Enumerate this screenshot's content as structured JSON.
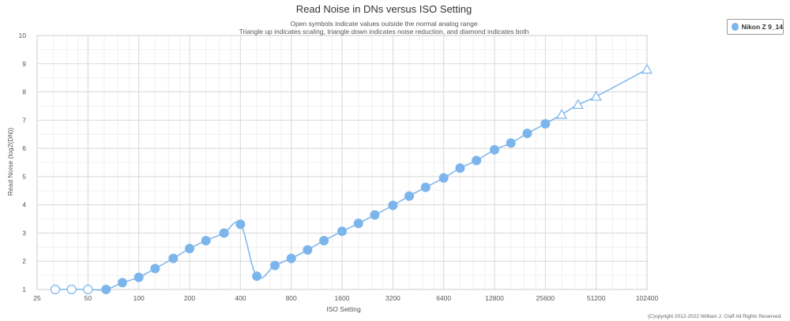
{
  "chart_data": {
    "type": "line",
    "title": "Read Noise in DNs versus ISO Setting",
    "subtitle_lines": [
      "Open symbols indicate values outside the normal analog range",
      "Triangle up indicates scaling, triangle down indicates noise reduction, and diamond indicates both"
    ],
    "xlabel": "ISO Setting",
    "ylabel": "Read Noise (log2(DN))",
    "x_scale": "log2",
    "xlim": [
      25,
      102400
    ],
    "ylim": [
      1,
      10
    ],
    "x_ticks": [
      25,
      50,
      100,
      200,
      400,
      800,
      1600,
      3200,
      6400,
      12800,
      25600,
      51200,
      102400
    ],
    "y_ticks": [
      1,
      2,
      3,
      4,
      5,
      6,
      7,
      8,
      9,
      10
    ],
    "grid": true,
    "legend_position": "top-right",
    "series": [
      {
        "name": "Nikon Z 9_14",
        "color": "#7cb5ec",
        "points": [
          {
            "x": 32,
            "y": 1.0,
            "marker": "open-circle"
          },
          {
            "x": 40,
            "y": 1.0,
            "marker": "open-circle"
          },
          {
            "x": 50,
            "y": 1.0,
            "marker": "open-circle"
          },
          {
            "x": 64,
            "y": 1.0,
            "marker": "circle"
          },
          {
            "x": 80,
            "y": 1.24,
            "marker": "circle"
          },
          {
            "x": 100,
            "y": 1.43,
            "marker": "circle"
          },
          {
            "x": 125,
            "y": 1.74,
            "marker": "circle"
          },
          {
            "x": 160,
            "y": 2.1,
            "marker": "circle"
          },
          {
            "x": 200,
            "y": 2.45,
            "marker": "circle"
          },
          {
            "x": 250,
            "y": 2.73,
            "marker": "circle"
          },
          {
            "x": 320,
            "y": 3.0,
            "marker": "circle"
          },
          {
            "x": 400,
            "y": 3.31,
            "marker": "circle"
          },
          {
            "x": 500,
            "y": 1.47,
            "marker": "circle"
          },
          {
            "x": 640,
            "y": 1.85,
            "marker": "circle"
          },
          {
            "x": 800,
            "y": 2.1,
            "marker": "circle"
          },
          {
            "x": 1000,
            "y": 2.4,
            "marker": "circle"
          },
          {
            "x": 1250,
            "y": 2.73,
            "marker": "circle"
          },
          {
            "x": 1600,
            "y": 3.06,
            "marker": "circle"
          },
          {
            "x": 2000,
            "y": 3.34,
            "marker": "circle"
          },
          {
            "x": 2500,
            "y": 3.64,
            "marker": "circle"
          },
          {
            "x": 3200,
            "y": 3.98,
            "marker": "circle"
          },
          {
            "x": 4000,
            "y": 4.31,
            "marker": "circle"
          },
          {
            "x": 5000,
            "y": 4.62,
            "marker": "circle"
          },
          {
            "x": 6400,
            "y": 4.95,
            "marker": "circle"
          },
          {
            "x": 8000,
            "y": 5.3,
            "marker": "circle"
          },
          {
            "x": 10000,
            "y": 5.57,
            "marker": "circle"
          },
          {
            "x": 12800,
            "y": 5.95,
            "marker": "circle"
          },
          {
            "x": 16000,
            "y": 6.19,
            "marker": "circle"
          },
          {
            "x": 20000,
            "y": 6.53,
            "marker": "circle"
          },
          {
            "x": 25600,
            "y": 6.87,
            "marker": "circle"
          },
          {
            "x": 32000,
            "y": 7.2,
            "marker": "open-triangle-up"
          },
          {
            "x": 40000,
            "y": 7.55,
            "marker": "open-triangle-up"
          },
          {
            "x": 51200,
            "y": 7.84,
            "marker": "open-triangle-up"
          },
          {
            "x": 102400,
            "y": 8.8,
            "marker": "open-triangle-up"
          }
        ]
      }
    ]
  },
  "credits": "(C)opyright 2012-2022 William J. Claff All Rights Reserved."
}
